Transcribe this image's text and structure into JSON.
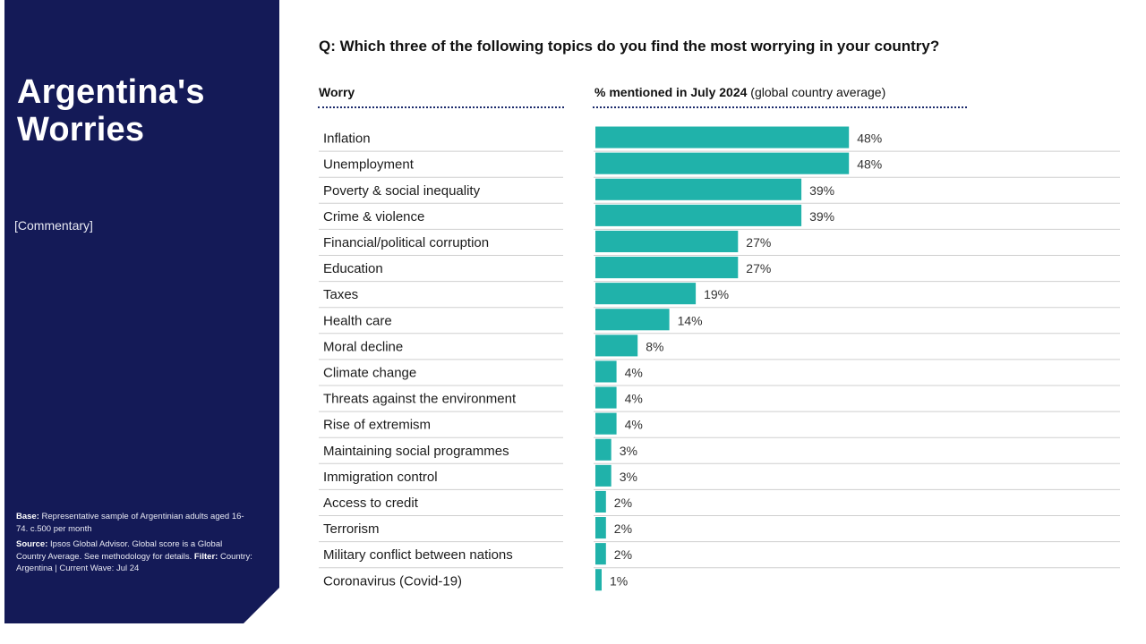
{
  "sidebar": {
    "title_line1": "Argentina's",
    "title_line2": "Worries",
    "commentary": "[Commentary]",
    "base_label": "Base:",
    "base_text": "Representative sample of Argentinian adults aged 16-74. c.500 per month",
    "source_label": "Source:",
    "source_text": "Ipsos Global Advisor. Global score is a Global Country Average. See methodology for details.",
    "filter_label": "Filter:",
    "filter_text": "Country: Argentina | Current Wave: Jul 24"
  },
  "question": "Q: Which three of the following topics do you find the most worrying in your country?",
  "headers": {
    "worry": "Worry",
    "pct_bold": "% mentioned in July 2024",
    "pct_rest": "(global country average)"
  },
  "chart_data": {
    "type": "bar",
    "orientation": "horizontal",
    "categories": [
      "Inflation",
      "Unemployment",
      "Poverty & social inequality",
      "Crime & violence",
      "Financial/political corruption",
      "Education",
      "Taxes",
      "Health care",
      "Moral decline",
      "Climate change",
      "Threats against the environment",
      "Rise of extremism",
      "Maintaining social programmes",
      "Immigration control",
      "Access to credit",
      "Terrorism",
      "Military conflict between nations",
      "Coronavirus (Covid-19)"
    ],
    "values": [
      48,
      48,
      39,
      39,
      27,
      27,
      19,
      14,
      8,
      4,
      4,
      4,
      3,
      3,
      2,
      2,
      2,
      1
    ],
    "value_labels": [
      "48%",
      "48%",
      "39%",
      "39%",
      "27%",
      "27%",
      "19%",
      "14%",
      "8%",
      "4%",
      "4%",
      "4%",
      "3%",
      "3%",
      "2%",
      "2%",
      "2%",
      "1%"
    ],
    "bar_color": "#20b2aa",
    "xlim": [
      0,
      70
    ],
    "grid": false
  }
}
